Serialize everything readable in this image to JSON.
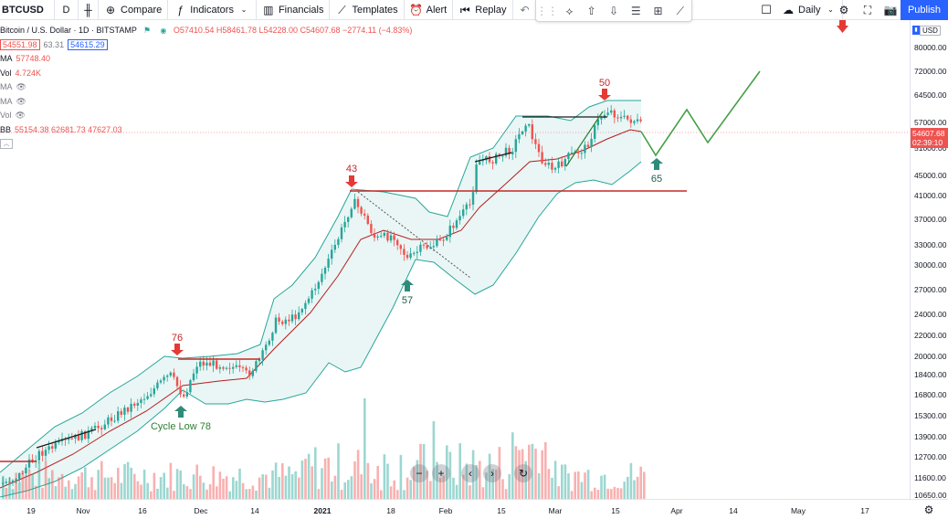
{
  "toolbar": {
    "symbol": "BTCUSD",
    "interval": "D",
    "compare": "Compare",
    "indicators": "Indicators",
    "financials": "Financials",
    "templates": "Templates",
    "alert": "Alert",
    "replay": "Replay",
    "timeframe": "Daily",
    "publish": "Publish"
  },
  "legend": {
    "title": "Bitcoin / U.S. Dollar · 1D · BITSTAMP",
    "ohlc": "O57410.54 H58461.78 L54228.00 C54607.68 −2774.11 (−4.83%)",
    "bid": "54551.98",
    "spread": "63.31",
    "ask": "54615.29",
    "ma1_label": "MA",
    "ma1_value": "57748.40",
    "vol_label": "Vol",
    "vol_value": "4.724K",
    "ma2_label": "MA",
    "ma3_label": "MA",
    "vol2_label": "Vol",
    "bb_label": "BB",
    "bb_values": "55154.38 62681.73 47627.03"
  },
  "price_axis": {
    "currency": "USD",
    "ticks": [
      "80000.00",
      "72000.00",
      "64500.00",
      "57000.00",
      "51000.00",
      "45000.00",
      "41000.00",
      "37000.00",
      "33000.00",
      "30000.00",
      "27000.00",
      "24000.00",
      "22000.00",
      "20000.00",
      "18400.00",
      "16800.00",
      "15300.00",
      "13900.00",
      "12700.00",
      "11600.00",
      "10650.00"
    ],
    "current_price": "54607.68",
    "countdown": "02:39:10"
  },
  "time_axis": {
    "ticks": [
      "19",
      "Nov",
      "16",
      "Dec",
      "14",
      "2021",
      "18",
      "Feb",
      "15",
      "Mar",
      "15",
      "Apr",
      "14",
      "May",
      "17"
    ]
  },
  "annotations": {
    "cycle_low": "Cycle Low 78",
    "top_76": "76",
    "top_43": "43",
    "top_50": "50",
    "low_57": "57",
    "low_65": "65"
  },
  "colors": {
    "up": "#26a69a",
    "down": "#ef5350",
    "bb_fill": "#e0f2f1",
    "bb_line": "#26a69a",
    "ma_line": "#b71c1c",
    "projection": "#43a047",
    "accent": "#2962ff"
  }
}
